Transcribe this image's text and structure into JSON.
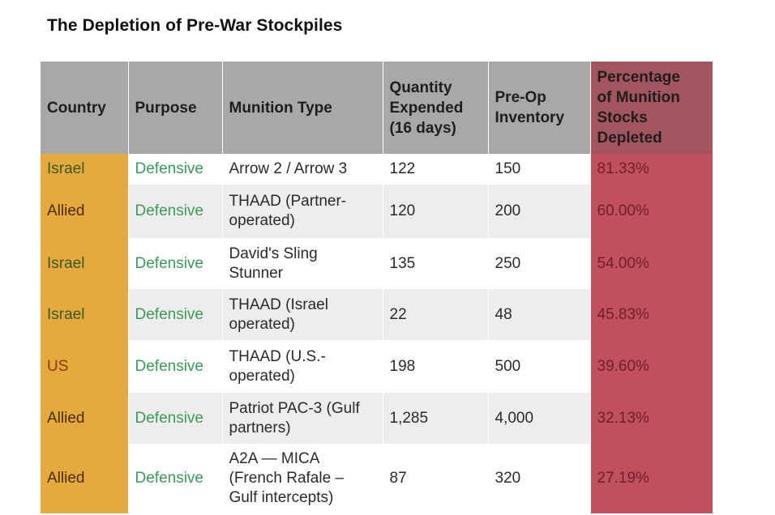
{
  "title": "The Depletion of Pre-War Stockpiles",
  "headers": {
    "country": "Country",
    "purpose": "Purpose",
    "munition": "Munition Type",
    "quantity_l1": "Quantity",
    "quantity_l2": "Expended",
    "quantity_l3": "(16 days)",
    "inventory_l1": "Pre-Op",
    "inventory_l2": "Inventory",
    "pct_l1": "Percentage",
    "pct_l2": "of Munition",
    "pct_l3": "Stocks",
    "pct_l4": "Depleted"
  },
  "colors": {
    "header_bg": "#a8a8a8",
    "country_bg": "#e5a93d",
    "pct_bg": "#c0505e",
    "purpose_text": "#3a9a5a"
  },
  "rows": [
    {
      "country": "Israel",
      "purpose": "Defensive",
      "munition": [
        "Arrow 2 / Arrow 3"
      ],
      "quantity": "122",
      "inventory": "150",
      "pct": "81.33%"
    },
    {
      "country": "Allied",
      "purpose": "Defensive",
      "munition": [
        "THAAD (Partner-",
        "operated)"
      ],
      "quantity": "120",
      "inventory": "200",
      "pct": "60.00%"
    },
    {
      "country": "Israel",
      "purpose": "Defensive",
      "munition": [
        "David's Sling",
        "Stunner"
      ],
      "quantity": "135",
      "inventory": "250",
      "pct": "54.00%"
    },
    {
      "country": "Israel",
      "purpose": "Defensive",
      "munition": [
        "THAAD (Israel",
        "operated)"
      ],
      "quantity": "22",
      "inventory": "48",
      "pct": "45.83%"
    },
    {
      "country": "US",
      "purpose": "Defensive",
      "munition": [
        "THAAD (U.S.-",
        "operated)"
      ],
      "quantity": "198",
      "inventory": "500",
      "pct": "39.60%"
    },
    {
      "country": "Allied",
      "purpose": "Defensive",
      "munition": [
        "Patriot PAC-3 (Gulf",
        "partners)"
      ],
      "quantity": "1,285",
      "inventory": "4,000",
      "pct": "32.13%"
    },
    {
      "country": "Allied",
      "purpose": "Defensive",
      "munition": [
        "A2A — MICA",
        "(French Rafale –",
        "Gulf intercepts)"
      ],
      "quantity": "87",
      "inventory": "320",
      "pct": "27.19%"
    }
  ]
}
